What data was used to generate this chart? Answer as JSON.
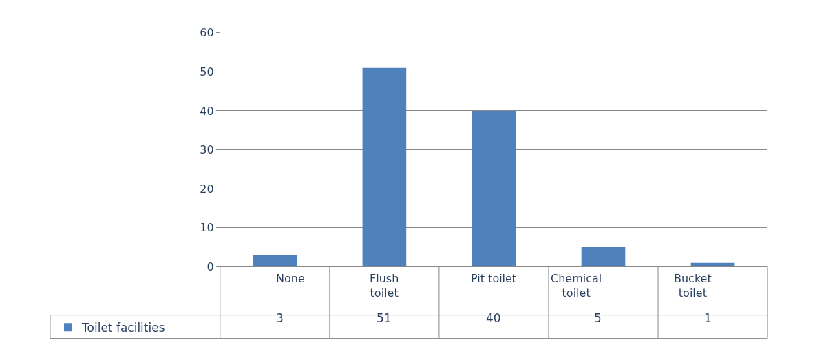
{
  "chart_data": {
    "type": "bar",
    "categories": [
      "None",
      "Flush toilet",
      "Pit toilet",
      "Chemical toilet",
      "Bucket toilet"
    ],
    "series": [
      {
        "name": "Toilet facilities",
        "color": "#4f81bd",
        "values": [
          3,
          51,
          40,
          5,
          1
        ]
      }
    ],
    "ylim": [
      0,
      60
    ],
    "yticks": [
      0,
      10,
      20,
      30,
      40,
      50,
      60
    ],
    "grid": "y",
    "legend": "bottom",
    "data_labels": true
  }
}
